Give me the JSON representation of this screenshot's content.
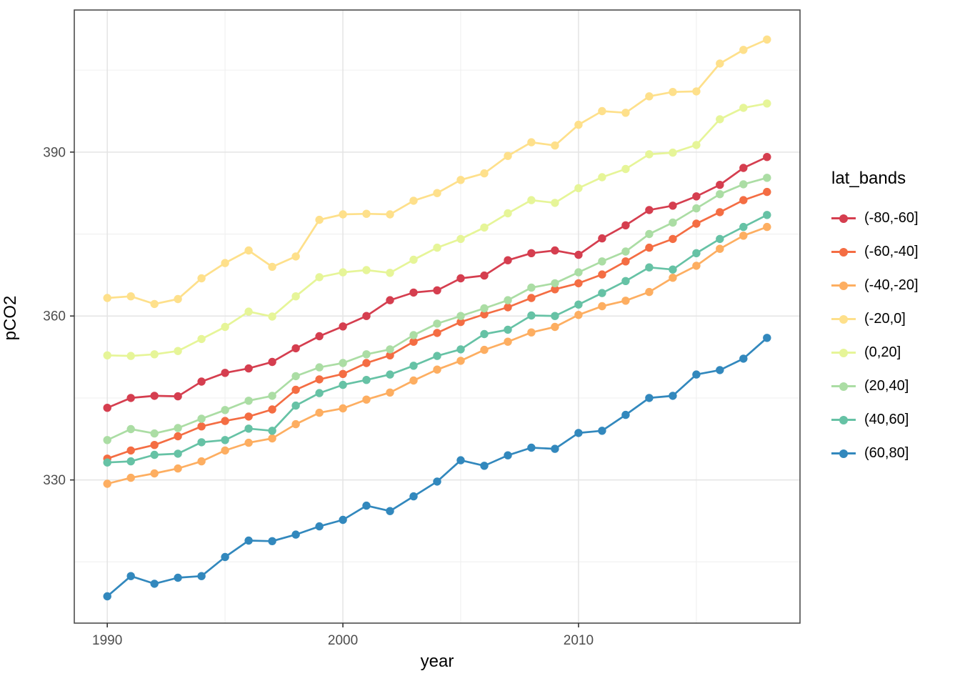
{
  "figure": {
    "background": "#ffffff",
    "panel_border_color": "#4d4d4d",
    "grid_major_color": "#e4e4e4",
    "grid_minor_color": "#f0f0f0",
    "tick_color": "#333333",
    "tick_label_color": "#4d4d4d"
  },
  "chart_data": {
    "type": "line",
    "title": "",
    "xlabel": "year",
    "ylabel": "pCO2",
    "legend_title": "lat_bands",
    "legend_position": "right",
    "grid": true,
    "x_ticks": [
      1990,
      2000,
      2010
    ],
    "x_minor_ticks": [
      1995,
      2005,
      2015
    ],
    "y_ticks": [
      330,
      360,
      390
    ],
    "y_minor_ticks": [
      315,
      345,
      375,
      405
    ],
    "xlim": [
      1988.6,
      2019.4
    ],
    "ylim": [
      303.8,
      416.0
    ],
    "x": [
      1990,
      1991,
      1992,
      1993,
      1994,
      1995,
      1996,
      1997,
      1998,
      1999,
      2000,
      2001,
      2002,
      2003,
      2004,
      2005,
      2006,
      2007,
      2008,
      2009,
      2010,
      2011,
      2012,
      2013,
      2014,
      2015,
      2016,
      2017,
      2018
    ],
    "series": [
      {
        "name": "(-80,-60]",
        "color": "#D53E4F",
        "values": [
          343.2,
          345.0,
          345.4,
          345.3,
          348.0,
          349.6,
          350.4,
          351.6,
          354.1,
          356.3,
          358.1,
          360.0,
          362.9,
          364.3,
          364.7,
          366.9,
          367.4,
          370.2,
          371.5,
          372.0,
          371.2,
          374.2,
          376.6,
          379.4,
          380.2,
          381.9,
          384.0,
          387.1,
          389.1
        ]
      },
      {
        "name": "(-60,-40]",
        "color": "#F46D43",
        "values": [
          333.9,
          335.4,
          336.4,
          338.0,
          339.8,
          340.8,
          341.6,
          342.9,
          346.5,
          348.4,
          349.4,
          351.4,
          352.8,
          355.3,
          356.9,
          358.9,
          360.3,
          361.6,
          363.3,
          364.9,
          366.0,
          367.6,
          370.0,
          372.5,
          374.1,
          376.9,
          379.0,
          381.2,
          382.7
        ]
      },
      {
        "name": "(-40,-20]",
        "color": "#FDAE61",
        "values": [
          329.3,
          330.4,
          331.2,
          332.1,
          333.4,
          335.4,
          336.8,
          337.6,
          340.2,
          342.3,
          343.1,
          344.7,
          346.0,
          348.2,
          350.2,
          351.8,
          353.8,
          355.3,
          357.0,
          358.0,
          360.2,
          361.8,
          362.8,
          364.4,
          367.0,
          369.2,
          372.3,
          374.7,
          376.3
        ]
      },
      {
        "name": "(-20,0]",
        "color": "#FEE08B",
        "values": [
          363.3,
          363.6,
          362.2,
          363.1,
          366.9,
          369.7,
          372.0,
          369.0,
          370.9,
          377.6,
          378.6,
          378.7,
          378.6,
          381.1,
          382.5,
          384.9,
          386.1,
          389.3,
          391.8,
          391.2,
          395.0,
          397.5,
          397.2,
          400.2,
          401.0,
          401.1,
          406.2,
          408.7,
          410.6
        ]
      },
      {
        "name": "(0,20]",
        "color": "#E6F598",
        "values": [
          352.8,
          352.7,
          353.0,
          353.6,
          355.8,
          358.0,
          360.8,
          359.9,
          363.6,
          367.1,
          368.0,
          368.4,
          367.9,
          370.3,
          372.5,
          374.1,
          376.2,
          378.8,
          381.2,
          380.7,
          383.4,
          385.4,
          386.9,
          389.6,
          389.9,
          391.3,
          396.0,
          398.1,
          398.9
        ]
      },
      {
        "name": "(20,40]",
        "color": "#ABDDA4",
        "values": [
          337.3,
          339.3,
          338.5,
          339.5,
          341.2,
          342.8,
          344.5,
          345.4,
          349.0,
          350.6,
          351.4,
          353.0,
          353.9,
          356.5,
          358.6,
          360.0,
          361.4,
          362.9,
          365.2,
          366.0,
          368.0,
          370.0,
          371.8,
          375.0,
          377.1,
          379.7,
          382.3,
          384.1,
          385.3
        ]
      },
      {
        "name": "(40,60]",
        "color": "#66C2A5",
        "values": [
          333.2,
          333.4,
          334.6,
          334.8,
          336.9,
          337.3,
          339.4,
          339.0,
          343.6,
          345.9,
          347.4,
          348.3,
          349.3,
          350.9,
          352.7,
          353.9,
          356.7,
          357.5,
          360.1,
          360.0,
          362.1,
          364.2,
          366.4,
          368.9,
          368.5,
          371.5,
          374.1,
          376.3,
          378.5
        ]
      },
      {
        "name": "(60,80]",
        "color": "#3288BD",
        "values": [
          308.7,
          312.4,
          311.0,
          312.1,
          312.4,
          315.9,
          318.9,
          318.8,
          320.0,
          321.5,
          322.7,
          325.3,
          324.3,
          327.0,
          329.7,
          333.6,
          332.6,
          334.5,
          335.9,
          335.7,
          338.6,
          339.0,
          341.9,
          345.0,
          345.4,
          349.3,
          350.1,
          352.2,
          356.0
        ]
      }
    ]
  }
}
